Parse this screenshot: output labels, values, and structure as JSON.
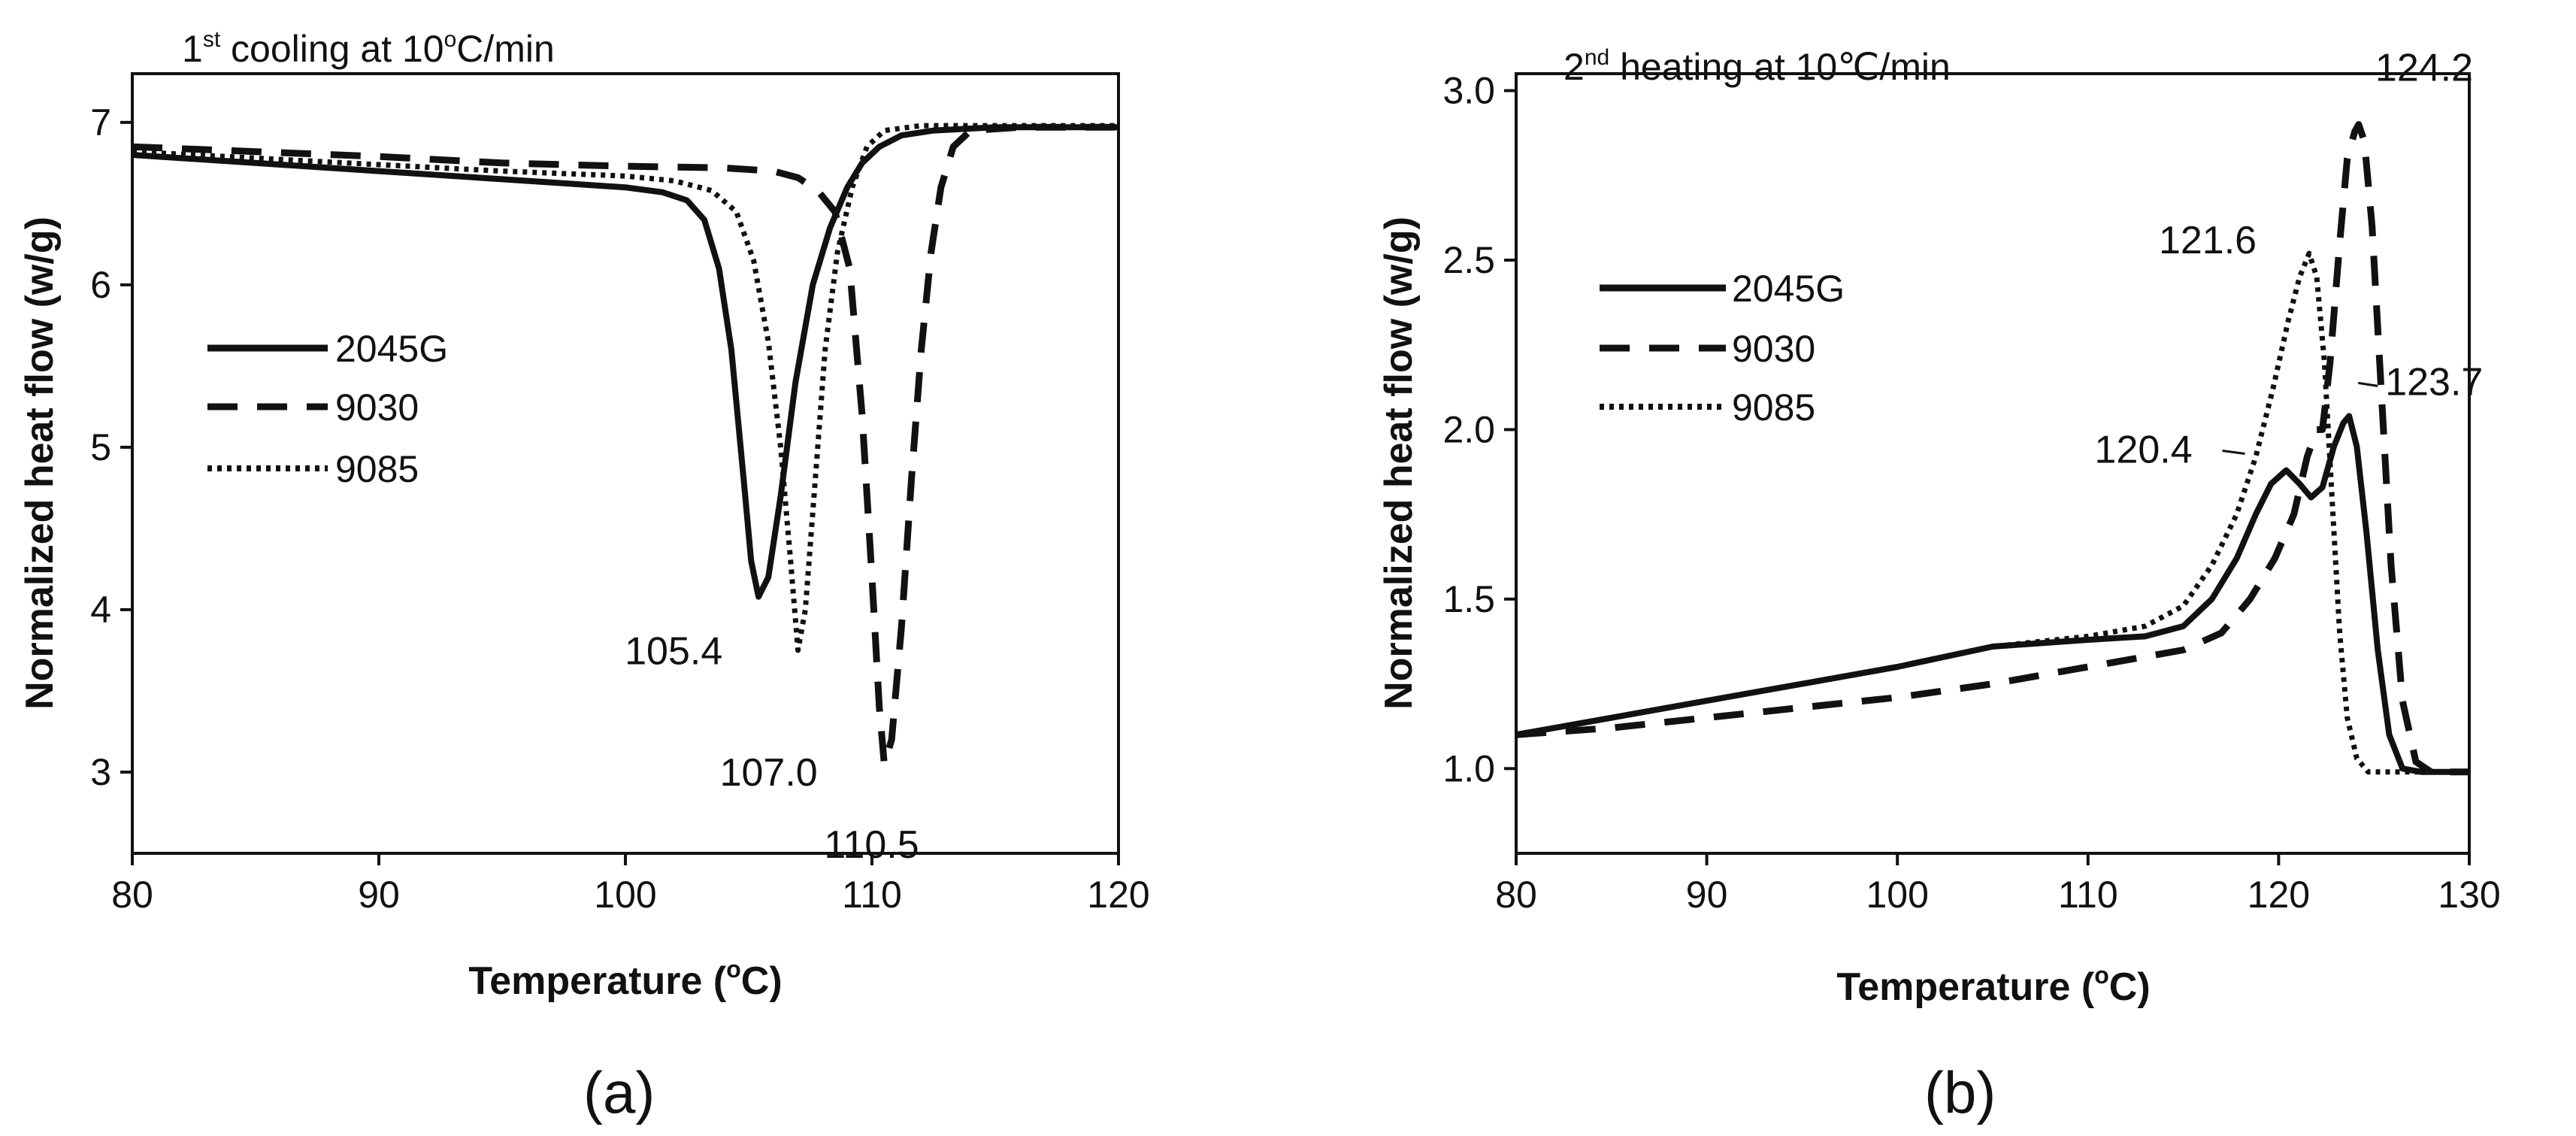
{
  "chart_data": [
    {
      "type": "line",
      "panel_label": "(a)",
      "title": "1",
      "title_sup": "st",
      "title_rest": " cooling at 10",
      "title_sup2": "o",
      "title_end": "C/min",
      "xlabel": "Temperature (",
      "xlabel_sup": "o",
      "xlabel_end": "C)",
      "ylabel": "Normalized heat flow (w/g)",
      "xlim": [
        80,
        120
      ],
      "ylim": [
        2.5,
        7.3
      ],
      "xticks": [
        80,
        90,
        100,
        110,
        120
      ],
      "yticks": [
        3,
        4,
        5,
        6,
        7
      ],
      "legend": [
        "2045G",
        "9030",
        "9085"
      ],
      "series": [
        {
          "name": "2045G",
          "style": "solid",
          "x": [
            80,
            85,
            90,
            95,
            100,
            101.5,
            102.5,
            103.2,
            103.8,
            104.3,
            104.8,
            105.1,
            105.4,
            105.8,
            106.3,
            106.9,
            107.6,
            108.3,
            109,
            109.6,
            110.3,
            111.2,
            112.5,
            115,
            120
          ],
          "y": [
            6.8,
            6.75,
            6.7,
            6.65,
            6.6,
            6.57,
            6.52,
            6.4,
            6.1,
            5.6,
            4.8,
            4.3,
            4.08,
            4.2,
            4.7,
            5.4,
            6.0,
            6.35,
            6.6,
            6.75,
            6.85,
            6.92,
            6.95,
            6.97,
            6.97
          ]
        },
        {
          "name": "9030",
          "style": "dashed",
          "x": [
            80,
            85,
            90,
            95,
            100,
            104,
            106,
            107,
            107.8,
            108.5,
            109.1,
            109.6,
            110.0,
            110.3,
            110.5,
            110.8,
            111.2,
            111.6,
            112.0,
            112.4,
            112.8,
            113.3,
            114,
            116,
            120
          ],
          "y": [
            6.85,
            6.82,
            6.79,
            6.75,
            6.73,
            6.72,
            6.7,
            6.66,
            6.58,
            6.45,
            6.1,
            5.2,
            4.2,
            3.4,
            3.05,
            3.2,
            3.9,
            4.8,
            5.6,
            6.2,
            6.6,
            6.85,
            6.95,
            6.97,
            6.97
          ]
        },
        {
          "name": "9085",
          "style": "dotted",
          "x": [
            80,
            85,
            90,
            95,
            100,
            102,
            103.5,
            104.5,
            105.2,
            105.8,
            106.3,
            106.7,
            107.0,
            107.3,
            107.7,
            108.1,
            108.6,
            109.2,
            109.8,
            110.5,
            112,
            115,
            120
          ],
          "y": [
            6.82,
            6.78,
            6.74,
            6.7,
            6.67,
            6.64,
            6.58,
            6.45,
            6.15,
            5.65,
            5.0,
            4.3,
            3.75,
            4.0,
            4.8,
            5.6,
            6.2,
            6.6,
            6.85,
            6.95,
            6.98,
            6.98,
            6.98
          ]
        }
      ],
      "annotations": [
        {
          "text": "105.4",
          "x": 105.4,
          "y": 4.08
        },
        {
          "text": "107.0",
          "x": 107.0,
          "y": 3.75
        },
        {
          "text": "110.5",
          "x": 110.5,
          "y": 3.05
        }
      ]
    },
    {
      "type": "line",
      "panel_label": "(b)",
      "title": "2",
      "title_sup": "nd",
      "title_rest": " heating at 10",
      "title_sup2": "",
      "title_end": "℃/min",
      "xlabel": "Temperature (",
      "xlabel_sup": "o",
      "xlabel_end": "C)",
      "ylabel": "Normalized heat flow (w/g)",
      "xlim": [
        80,
        130
      ],
      "ylim": [
        0.75,
        3.05
      ],
      "xticks": [
        80,
        90,
        100,
        110,
        120,
        130
      ],
      "yticks": [
        1.0,
        1.5,
        2.0,
        2.5,
        3.0
      ],
      "ytick_labels": [
        "1.0",
        "1.5",
        "2.0",
        "2.5",
        "3.0"
      ],
      "legend": [
        "2045G",
        "9030",
        "9085"
      ],
      "series": [
        {
          "name": "2045G",
          "style": "solid",
          "x": [
            80,
            85,
            90,
            95,
            100,
            105,
            110,
            113,
            115,
            116.5,
            117.8,
            118.8,
            119.6,
            120.4,
            121.1,
            121.7,
            122.3,
            122.9,
            123.4,
            123.7,
            124.1,
            124.6,
            125.2,
            125.8,
            126.5,
            127.5,
            130
          ],
          "y": [
            1.1,
            1.15,
            1.2,
            1.25,
            1.3,
            1.36,
            1.38,
            1.39,
            1.42,
            1.5,
            1.62,
            1.75,
            1.84,
            1.88,
            1.84,
            1.8,
            1.83,
            1.95,
            2.02,
            2.04,
            1.95,
            1.7,
            1.35,
            1.1,
            1.0,
            0.99,
            0.99
          ]
        },
        {
          "name": "9030",
          "style": "dashed",
          "x": [
            80,
            85,
            90,
            95,
            100,
            105,
            110,
            115,
            117,
            118.5,
            119.8,
            120.8,
            121.5,
            122.0,
            122.3,
            122.7,
            123.2,
            123.6,
            124.0,
            124.2,
            124.5,
            124.9,
            125.4,
            125.9,
            126.5,
            127.2,
            128,
            130
          ],
          "y": [
            1.1,
            1.12,
            1.15,
            1.18,
            1.21,
            1.25,
            1.3,
            1.35,
            1.4,
            1.5,
            1.62,
            1.75,
            1.92,
            2.0,
            2.0,
            2.2,
            2.55,
            2.8,
            2.88,
            2.9,
            2.85,
            2.6,
            2.1,
            1.6,
            1.2,
            1.02,
            0.99,
            0.99
          ]
        },
        {
          "name": "9085",
          "style": "dotted",
          "x": [
            80,
            85,
            90,
            95,
            100,
            105,
            110,
            113,
            115,
            116.5,
            117.8,
            118.8,
            119.7,
            120.5,
            121.1,
            121.6,
            122.0,
            122.4,
            122.8,
            123.2,
            123.6,
            124.1,
            124.7,
            125.5,
            127,
            130
          ],
          "y": [
            1.1,
            1.15,
            1.2,
            1.25,
            1.3,
            1.36,
            1.39,
            1.42,
            1.48,
            1.6,
            1.75,
            1.92,
            2.12,
            2.32,
            2.45,
            2.52,
            2.45,
            2.2,
            1.8,
            1.4,
            1.15,
            1.03,
            0.99,
            0.99,
            0.99,
            0.99
          ]
        }
      ],
      "annotations": [
        {
          "text": "124.2",
          "x": 124.2,
          "y": 2.9
        },
        {
          "text": "121.6",
          "x": 121.6,
          "y": 2.52
        },
        {
          "text": "120.4",
          "x": 120.4,
          "y": 1.88
        },
        {
          "text": "123.7",
          "x": 123.7,
          "y": 2.04
        }
      ]
    }
  ]
}
